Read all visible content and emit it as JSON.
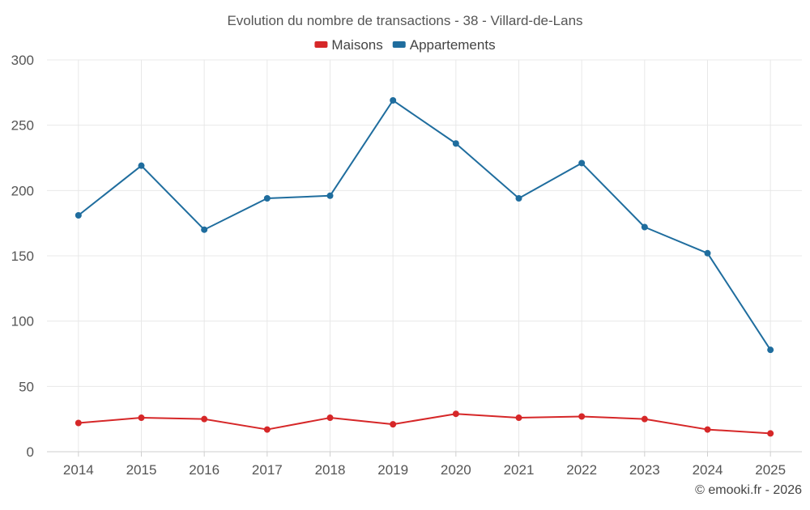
{
  "chart_data": {
    "type": "line",
    "title": "Evolution du nombre de transactions - 38 - Villard-de-Lans",
    "categories": [
      "2014",
      "2015",
      "2016",
      "2017",
      "2018",
      "2019",
      "2020",
      "2021",
      "2022",
      "2023",
      "2024",
      "2025"
    ],
    "series": [
      {
        "name": "Maisons",
        "color": "#d62728",
        "values": [
          22,
          26,
          25,
          17,
          26,
          21,
          29,
          26,
          27,
          25,
          17,
          14
        ]
      },
      {
        "name": "Appartements",
        "color": "#1f6d9e",
        "values": [
          181,
          219,
          170,
          194,
          196,
          269,
          236,
          194,
          221,
          172,
          152,
          78
        ]
      }
    ],
    "xlabel": "",
    "ylabel": "",
    "ylim": [
      0,
      300
    ],
    "yticks": [
      0,
      50,
      100,
      150,
      200,
      250,
      300
    ],
    "grid": true,
    "legend": "top-center",
    "credit": "© emooki.fr - 2026"
  }
}
